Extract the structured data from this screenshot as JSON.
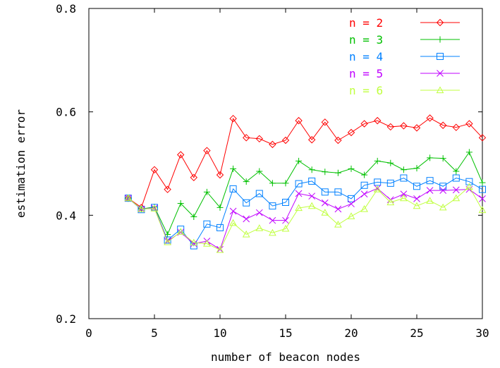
{
  "chart_data": {
    "type": "line",
    "title": "",
    "xlabel": "number of beacon nodes",
    "ylabel": "estimation error",
    "xlim": [
      0,
      30
    ],
    "ylim": [
      0.2,
      0.8
    ],
    "xticks": [
      0,
      5,
      10,
      15,
      20,
      25,
      30
    ],
    "xtick_labels": [
      "0",
      "5",
      "10",
      "15",
      "20",
      "25",
      "30"
    ],
    "yticks": [
      0.2,
      0.4,
      0.6,
      0.8
    ],
    "ytick_labels": [
      "0.2",
      "0.4",
      "0.6",
      "0.8"
    ],
    "grid": false,
    "legend_position": "top-right",
    "x": [
      3,
      4,
      5,
      6,
      7,
      8,
      9,
      10,
      11,
      12,
      13,
      14,
      15,
      16,
      17,
      18,
      19,
      20,
      21,
      22,
      23,
      24,
      25,
      26,
      27,
      28,
      29,
      30
    ],
    "series": [
      {
        "name": "n = 2",
        "color": "#ff0000",
        "marker": "diamond",
        "values": [
          0.433,
          0.415,
          0.488,
          0.45,
          0.517,
          0.473,
          0.525,
          0.478,
          0.587,
          0.55,
          0.548,
          0.537,
          0.545,
          0.583,
          0.546,
          0.58,
          0.545,
          0.56,
          0.577,
          0.583,
          0.571,
          0.573,
          0.569,
          0.588,
          0.574,
          0.57,
          0.577,
          0.55
        ]
      },
      {
        "name": "n = 3",
        "color": "#00c000",
        "marker": "plus",
        "values": [
          0.433,
          0.412,
          0.416,
          0.363,
          0.423,
          0.397,
          0.445,
          0.415,
          0.49,
          0.465,
          0.485,
          0.462,
          0.462,
          0.505,
          0.488,
          0.484,
          0.482,
          0.49,
          0.478,
          0.505,
          0.501,
          0.488,
          0.491,
          0.511,
          0.51,
          0.485,
          0.522,
          0.463
        ]
      },
      {
        "name": "n = 4",
        "color": "#0080ff",
        "marker": "square",
        "values": [
          0.433,
          0.411,
          0.415,
          0.352,
          0.373,
          0.341,
          0.383,
          0.376,
          0.451,
          0.424,
          0.442,
          0.418,
          0.425,
          0.461,
          0.466,
          0.445,
          0.445,
          0.432,
          0.458,
          0.464,
          0.462,
          0.472,
          0.456,
          0.467,
          0.456,
          0.472,
          0.465,
          0.45
        ]
      },
      {
        "name": "n = 5",
        "color": "#c000ff",
        "marker": "x",
        "values": [
          0.433,
          0.412,
          0.414,
          0.35,
          0.367,
          0.345,
          0.35,
          0.334,
          0.408,
          0.393,
          0.405,
          0.39,
          0.39,
          0.442,
          0.437,
          0.424,
          0.412,
          0.422,
          0.441,
          0.452,
          0.43,
          0.441,
          0.432,
          0.448,
          0.448,
          0.449,
          0.45,
          0.432
        ]
      },
      {
        "name": "n = 6",
        "color": "#c0ff40",
        "marker": "triangle",
        "values": [
          0.433,
          0.412,
          0.413,
          0.348,
          0.368,
          0.347,
          0.345,
          0.333,
          0.385,
          0.363,
          0.375,
          0.366,
          0.374,
          0.414,
          0.418,
          0.405,
          0.382,
          0.398,
          0.412,
          0.45,
          0.425,
          0.433,
          0.418,
          0.428,
          0.415,
          0.433,
          0.455,
          0.41
        ]
      }
    ]
  }
}
